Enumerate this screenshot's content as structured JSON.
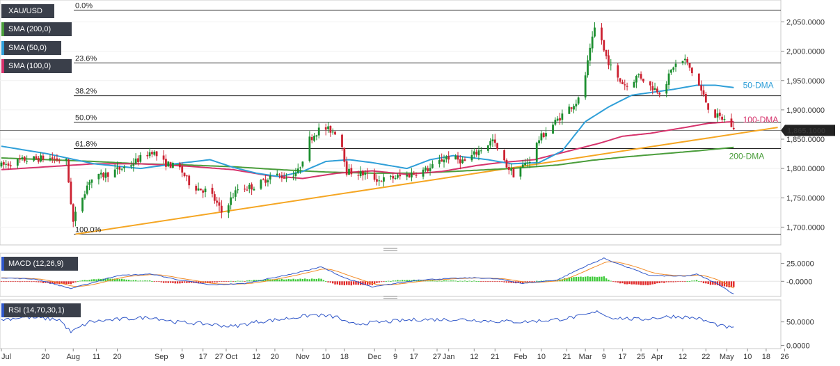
{
  "legend": {
    "symbol": "XAU/USD",
    "sma200": "SMA (200,0)",
    "sma50": "SMA (50,0)",
    "sma100": "SMA (100,0)",
    "macd": "MACD (12,26,9)",
    "rsi": "RSI (14,70,30,1)"
  },
  "colors": {
    "up_candle": "#1b8e2e",
    "down_candle": "#cc2131",
    "sma50": "#2f9fd8",
    "sma100": "#d6336c",
    "sma200": "#4a9d3b",
    "trendline": "#f5a623",
    "macd_line": "#2f56c8",
    "signal_line": "#f28c28",
    "rsi_line": "#2f56c8",
    "rsi_overbought_zone": "#6ff06a",
    "rsi_oversold_zone": "#f06c6c"
  },
  "chart_data": {
    "type": "candlestick",
    "symbol": "XAU/USD",
    "last_price": "1,865.1000",
    "y_ticks": [
      "2,050.0000",
      "2,000.0000",
      "1,950.0000",
      "1,900.0000",
      "1,850.0000",
      "1,800.0000",
      "1,750.0000",
      "1,700.0000"
    ],
    "y_tick_values": [
      2050,
      2000,
      1950,
      1900,
      1850,
      1800,
      1750,
      1700
    ],
    "ylim": [
      1672,
      2085
    ],
    "x_ticks": [
      "Jul",
      "20",
      "Aug",
      "11",
      "20",
      "Sep",
      "9",
      "17",
      "27 Oct",
      "12",
      "20",
      "Nov",
      "10",
      "18",
      "Dec",
      "9",
      "17",
      "27",
      "Jan",
      "12",
      "21",
      "Feb",
      "10",
      "21",
      "Mar",
      "9",
      "17",
      "25",
      "Apr",
      "12",
      "22",
      "May",
      "10",
      "18",
      "26"
    ],
    "x_tick_days": [
      0,
      19,
      31,
      41,
      50,
      69,
      78,
      87,
      97,
      110,
      118,
      130,
      140,
      148,
      161,
      170,
      178,
      188,
      193,
      204,
      213,
      224,
      233,
      244,
      252,
      260,
      268,
      276,
      283,
      294,
      304,
      313,
      322,
      330,
      338
    ],
    "fibonacci": [
      {
        "label": "0.0%",
        "value": 2070
      },
      {
        "label": "23.6%",
        "value": 1980
      },
      {
        "label": "38.2%",
        "value": 1924
      },
      {
        "label": "50.0%",
        "value": 1879
      },
      {
        "label": "61.8%",
        "value": 1834
      },
      {
        "label": "100.0%",
        "value": 1688
      }
    ],
    "annotations": [
      {
        "label": "50-DMA",
        "day": 317,
        "value": 1942
      },
      {
        "label": "100-DMA",
        "day": 317,
        "value": 1883
      },
      {
        "label": "200-DMA",
        "day": 311,
        "value": 1821
      }
    ],
    "trendline": {
      "start": {
        "day": 32,
        "value": 1688
      },
      "end": {
        "day": 335,
        "value": 1870
      }
    },
    "series_anchors": {
      "price": [
        [
          0,
          1805
        ],
        [
          10,
          1815
        ],
        [
          20,
          1818
        ],
        [
          28,
          1812
        ],
        [
          31,
          1708
        ],
        [
          33,
          1735
        ],
        [
          38,
          1780
        ],
        [
          45,
          1790
        ],
        [
          55,
          1805
        ],
        [
          65,
          1830
        ],
        [
          70,
          1810
        ],
        [
          77,
          1800
        ],
        [
          82,
          1770
        ],
        [
          90,
          1760
        ],
        [
          95,
          1725
        ],
        [
          102,
          1765
        ],
        [
          110,
          1770
        ],
        [
          117,
          1790
        ],
        [
          123,
          1785
        ],
        [
          128,
          1795
        ],
        [
          133,
          1850
        ],
        [
          138,
          1870
        ],
        [
          146,
          1860
        ],
        [
          149,
          1795
        ],
        [
          157,
          1790
        ],
        [
          163,
          1780
        ],
        [
          170,
          1785
        ],
        [
          175,
          1788
        ],
        [
          185,
          1800
        ],
        [
          192,
          1820
        ],
        [
          200,
          1812
        ],
        [
          206,
          1830
        ],
        [
          212,
          1848
        ],
        [
          216,
          1815
        ],
        [
          221,
          1790
        ],
        [
          228,
          1815
        ],
        [
          232,
          1850
        ],
        [
          238,
          1875
        ],
        [
          244,
          1900
        ],
        [
          250,
          1920
        ],
        [
          254,
          2000
        ],
        [
          257,
          2058
        ],
        [
          260,
          2000
        ],
        [
          265,
          1955
        ],
        [
          270,
          1940
        ],
        [
          275,
          1960
        ],
        [
          280,
          1940
        ],
        [
          285,
          1930
        ],
        [
          290,
          1975
        ],
        [
          295,
          1985
        ],
        [
          300,
          1950
        ],
        [
          305,
          1905
        ],
        [
          308,
          1890
        ],
        [
          311,
          1885
        ],
        [
          314,
          1880
        ],
        [
          316,
          1865
        ]
      ],
      "sma50": [
        [
          0,
          1838
        ],
        [
          20,
          1825
        ],
        [
          40,
          1808
        ],
        [
          60,
          1800
        ],
        [
          75,
          1808
        ],
        [
          90,
          1815
        ],
        [
          100,
          1802
        ],
        [
          110,
          1792
        ],
        [
          120,
          1786
        ],
        [
          130,
          1795
        ],
        [
          140,
          1812
        ],
        [
          150,
          1815
        ],
        [
          160,
          1810
        ],
        [
          175,
          1800
        ],
        [
          185,
          1815
        ],
        [
          195,
          1822
        ],
        [
          210,
          1815
        ],
        [
          220,
          1808
        ],
        [
          232,
          1810
        ],
        [
          242,
          1830
        ],
        [
          252,
          1880
        ],
        [
          262,
          1905
        ],
        [
          272,
          1925
        ],
        [
          290,
          1935
        ],
        [
          300,
          1942
        ],
        [
          308,
          1942
        ],
        [
          316,
          1938
        ]
      ],
      "sma100": [
        [
          0,
          1798
        ],
        [
          20,
          1803
        ],
        [
          40,
          1808
        ],
        [
          60,
          1808
        ],
        [
          80,
          1804
        ],
        [
          100,
          1798
        ],
        [
          115,
          1788
        ],
        [
          130,
          1783
        ],
        [
          145,
          1792
        ],
        [
          160,
          1796
        ],
        [
          175,
          1790
        ],
        [
          190,
          1795
        ],
        [
          205,
          1805
        ],
        [
          215,
          1810
        ],
        [
          230,
          1815
        ],
        [
          245,
          1830
        ],
        [
          258,
          1843
        ],
        [
          268,
          1855
        ],
        [
          280,
          1860
        ],
        [
          295,
          1870
        ],
        [
          305,
          1877
        ],
        [
          316,
          1880
        ]
      ],
      "sma200": [
        [
          0,
          1818
        ],
        [
          20,
          1815
        ],
        [
          40,
          1812
        ],
        [
          60,
          1808
        ],
        [
          80,
          1806
        ],
        [
          100,
          1803
        ],
        [
          120,
          1798
        ],
        [
          140,
          1794
        ],
        [
          160,
          1792
        ],
        [
          180,
          1792
        ],
        [
          200,
          1796
        ],
        [
          220,
          1800
        ],
        [
          240,
          1806
        ],
        [
          255,
          1814
        ],
        [
          270,
          1820
        ],
        [
          285,
          1825
        ],
        [
          300,
          1830
        ],
        [
          316,
          1836
        ]
      ],
      "macd": [
        [
          0,
          5
        ],
        [
          15,
          3
        ],
        [
          30,
          -10
        ],
        [
          38,
          -3
        ],
        [
          50,
          8
        ],
        [
          65,
          10
        ],
        [
          75,
          3
        ],
        [
          90,
          -5
        ],
        [
          105,
          -3
        ],
        [
          125,
          10
        ],
        [
          138,
          20
        ],
        [
          148,
          5
        ],
        [
          160,
          -8
        ],
        [
          180,
          2
        ],
        [
          195,
          4
        ],
        [
          205,
          5
        ],
        [
          215,
          3
        ],
        [
          225,
          -3
        ],
        [
          240,
          2
        ],
        [
          250,
          18
        ],
        [
          260,
          32
        ],
        [
          268,
          22
        ],
        [
          280,
          8
        ],
        [
          295,
          7
        ],
        [
          300,
          10
        ],
        [
          310,
          -5
        ],
        [
          317,
          -20
        ]
      ],
      "rsi": [
        [
          0,
          55
        ],
        [
          10,
          60
        ],
        [
          25,
          55
        ],
        [
          30,
          28
        ],
        [
          38,
          50
        ],
        [
          50,
          55
        ],
        [
          65,
          60
        ],
        [
          75,
          50
        ],
        [
          90,
          45
        ],
        [
          100,
          40
        ],
        [
          110,
          50
        ],
        [
          120,
          55
        ],
        [
          135,
          65
        ],
        [
          145,
          60
        ],
        [
          150,
          45
        ],
        [
          165,
          50
        ],
        [
          180,
          55
        ],
        [
          200,
          55
        ],
        [
          210,
          52
        ],
        [
          225,
          50
        ],
        [
          240,
          55
        ],
        [
          250,
          62
        ],
        [
          258,
          72
        ],
        [
          262,
          60
        ],
        [
          275,
          55
        ],
        [
          290,
          62
        ],
        [
          300,
          58
        ],
        [
          310,
          42
        ],
        [
          317,
          35
        ]
      ]
    },
    "macd_panel": {
      "y_ticks": [
        "25.0000",
        "-0.0000"
      ],
      "y_tick_values": [
        25,
        0
      ],
      "ylim": [
        -20,
        38
      ]
    },
    "rsi_panel": {
      "y_ticks": [
        "50.0000",
        "0.0000"
      ],
      "y_tick_values": [
        50,
        0
      ],
      "ylim": [
        -5,
        95
      ],
      "overbought": 70,
      "oversold": 30
    }
  }
}
